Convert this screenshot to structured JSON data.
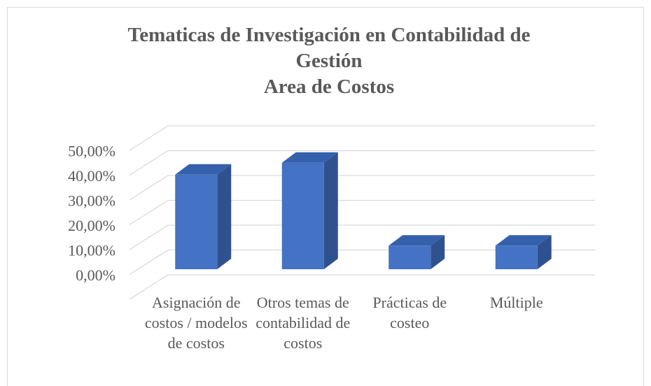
{
  "chart_data": {
    "type": "bar3d",
    "title": "Tematicas de Investigación en Contabilidad de Gestión",
    "subtitle": "Area de Costos",
    "categories": [
      "Asignación de costos / modelos de costos",
      "Otros temas de contabilidad de costos",
      "Prácticas de costeo",
      "Múltiple"
    ],
    "values": [
      38.1,
      42.9,
      9.5,
      9.5
    ],
    "color": "#4472c4",
    "ylim": [
      0,
      60
    ],
    "yticks": [
      {
        "value": 0,
        "label": "0,00%"
      },
      {
        "value": 10,
        "label": "10,00%"
      },
      {
        "value": 20,
        "label": "20,00%"
      },
      {
        "value": 30,
        "label": "30,00%"
      },
      {
        "value": 40,
        "label": "40,00%"
      },
      {
        "value": 50,
        "label": "50,00%"
      }
    ],
    "grid": true
  }
}
